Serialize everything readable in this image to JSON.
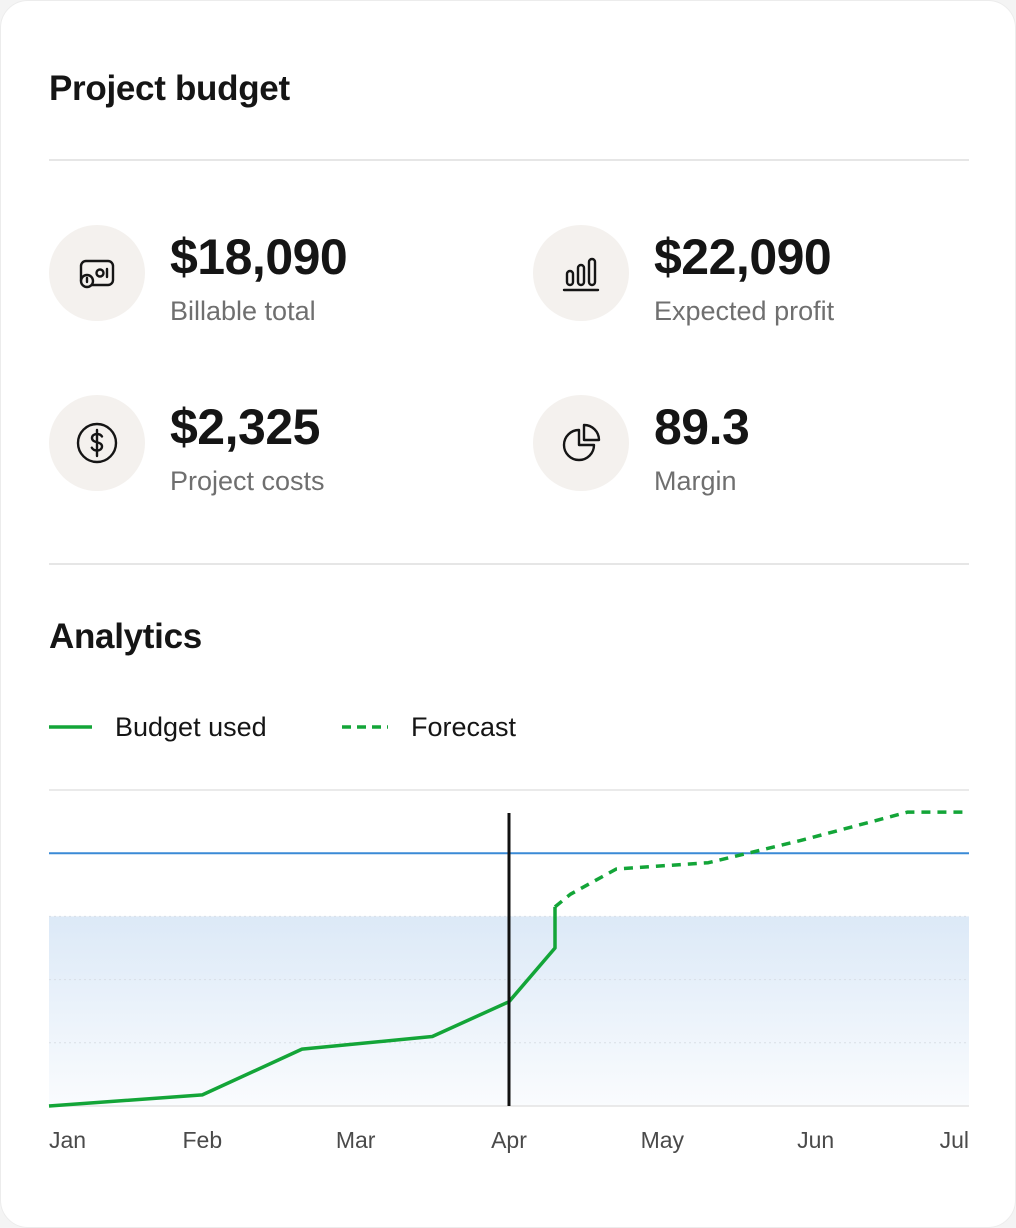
{
  "header": {
    "title": "Project budget"
  },
  "stats": [
    {
      "value": "$18,090",
      "label": "Billable total",
      "icon": "money-bill-icon"
    },
    {
      "value": "$22,090",
      "label": "Expected profit",
      "icon": "bar-chart-icon"
    },
    {
      "value": "$2,325",
      "label": "Project costs",
      "icon": "dollar-circle-icon"
    },
    {
      "value": "89.3",
      "label": "Margin",
      "icon": "pie-chart-icon"
    }
  ],
  "analytics": {
    "title": "Analytics"
  },
  "colors": {
    "line": "#13a538",
    "budget_line": "#3a8ad6",
    "cursor": "#111111",
    "band": "#dce9f7"
  },
  "chart_data": {
    "type": "line",
    "x_ticks": [
      "Jan",
      "Feb",
      "Mar",
      "Apr",
      "May",
      "Jun",
      "Jul"
    ],
    "legend": {
      "position": "top-left"
    },
    "series": [
      {
        "name": "Budget used",
        "style": "solid",
        "points": [
          [
            0,
            0
          ],
          [
            1,
            3.5
          ],
          [
            1.65,
            18
          ],
          [
            2.5,
            22
          ],
          [
            3.0,
            33
          ],
          [
            3.3,
            50
          ],
          [
            3.3,
            63
          ]
        ]
      },
      {
        "name": "Forecast",
        "style": "dashed",
        "points": [
          [
            3.3,
            63
          ],
          [
            3.4,
            67
          ],
          [
            3.7,
            75
          ],
          [
            4.3,
            77
          ],
          [
            4.9,
            84
          ],
          [
            5.6,
            93
          ],
          [
            6.0,
            93
          ]
        ]
      }
    ],
    "budget_line": 80,
    "shaded_band": [
      0,
      60
    ],
    "current_marker": 3.0,
    "ylim": [
      0,
      100
    ],
    "grid": true
  }
}
